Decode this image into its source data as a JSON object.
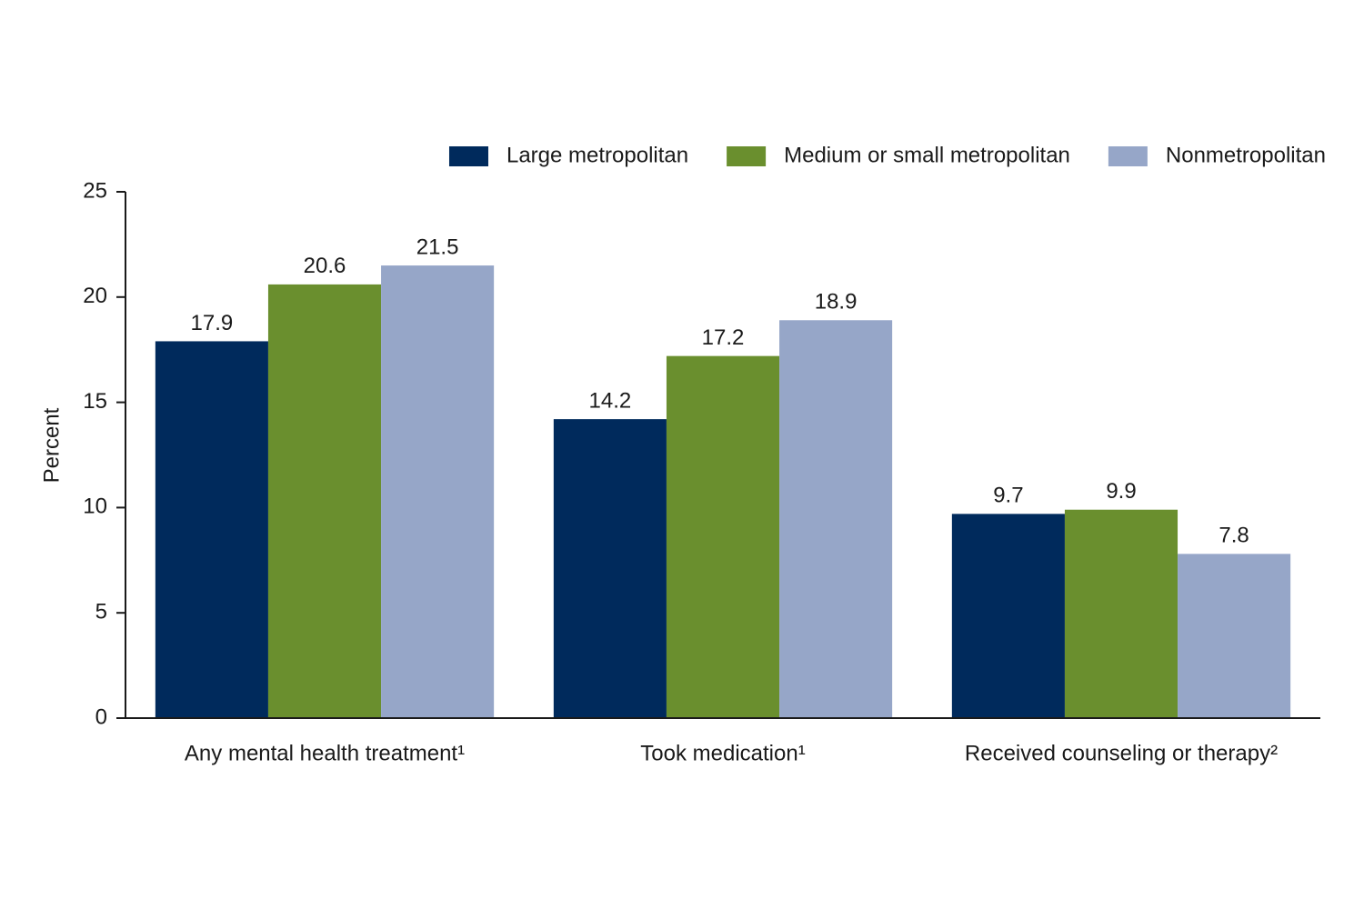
{
  "chart_data": {
    "type": "bar",
    "y_label": "Percent",
    "categories": [
      "Any mental health treatment¹",
      "Took medication¹",
      "Received counseling or therapy²"
    ],
    "series": [
      {
        "name": "Large metropolitan",
        "color": "#002a5c",
        "values": [
          17.9,
          14.2,
          9.7
        ]
      },
      {
        "name": "Medium or small metropolitan",
        "color": "#6a8f2e",
        "values": [
          20.6,
          17.2,
          9.9
        ]
      },
      {
        "name": "Nonmetropolitan",
        "color": "#96a6c8",
        "values": [
          21.5,
          18.9,
          7.8
        ]
      }
    ],
    "ylim": [
      0,
      25
    ],
    "yticks": [
      0,
      5,
      10,
      15,
      20,
      25
    ],
    "legend": "top-right",
    "grid": false
  }
}
